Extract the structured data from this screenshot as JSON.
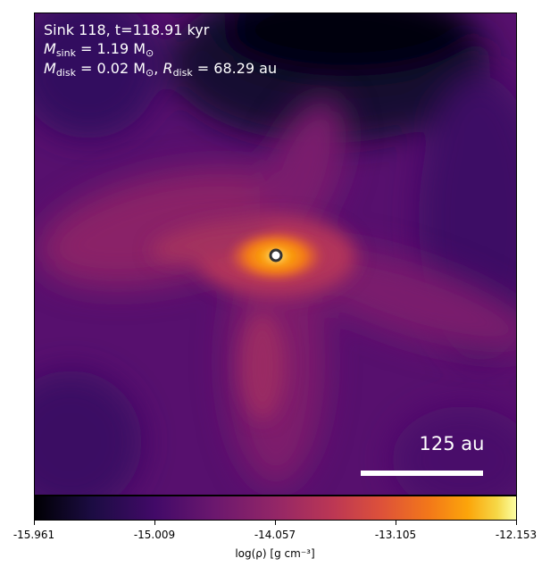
{
  "annotation": {
    "line1": "Sink 118, t=118.91 kyr",
    "msink_symbol": "M",
    "msink_sub": "sink",
    "msink_value": " = 1.19 M",
    "msink_unit_sub": "⊙",
    "mdisk_symbol": "M",
    "mdisk_sub": "disk",
    "mdisk_value": " = 0.02 M",
    "mdisk_unit_sub": "⊙",
    "rdisk_symbol": "R",
    "rdisk_sub": "disk",
    "rdisk_value": " = 68.29 au",
    "separator": ", "
  },
  "scale_bar": {
    "label": "125 au"
  },
  "colorbar": {
    "ticks": [
      "-15.961",
      "-15.009",
      "-14.057",
      "-13.105",
      "-12.153"
    ],
    "label": "log(ρ) [g cm⁻³]",
    "colormap": "inferno"
  }
}
